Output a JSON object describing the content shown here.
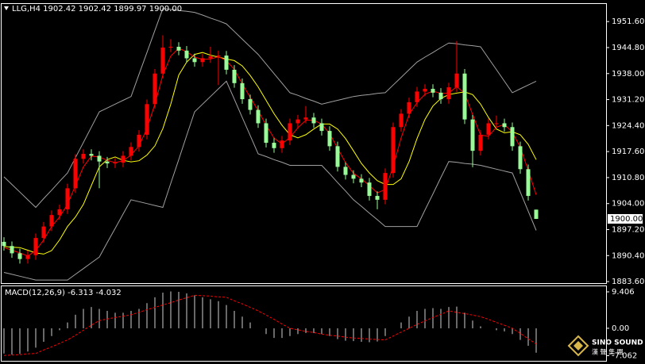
{
  "chart_data": [
    {
      "type": "candlestick",
      "title": "LLG,H4  1902.42 1902.42 1899.97 1900.00",
      "up_color": "#ff0000",
      "down_color": "#98fb98",
      "open": [
        1894,
        1892.9,
        1891,
        1889.5,
        1890.5,
        1895,
        1898,
        1901,
        1902.5,
        1908,
        1915.7,
        1917,
        1916.5,
        1915,
        1914.5,
        1914.7,
        1916.5,
        1918.8,
        1922,
        1930,
        1938,
        1944.8,
        1945,
        1944,
        1942,
        1941,
        1942,
        1942.5,
        1942.7,
        1939,
        1935.5,
        1931.3,
        1928.5,
        1925,
        1919.9,
        1918.5,
        1920.5,
        1925,
        1926,
        1926.5,
        1925,
        1923,
        1919,
        1913.6,
        1911.5,
        1910.5,
        1909.5,
        1906,
        1905,
        1912,
        1924,
        1927.5,
        1930.5,
        1933.3,
        1934,
        1933,
        1931.3,
        1934.4,
        1938,
        1926,
        1917.8,
        1922,
        1925,
        1925,
        1924,
        1919,
        1913,
        1902.42
      ],
      "high": [
        1895.2,
        1894.1,
        1892.2,
        1891.7,
        1896.2,
        1899.2,
        1902.2,
        1903.7,
        1909.2,
        1916.9,
        1918.2,
        1918.2,
        1917.7,
        1916.2,
        1915.9,
        1917.7,
        1920,
        1923.2,
        1931.2,
        1939.2,
        1948,
        1947,
        1946.2,
        1945.2,
        1943.2,
        1943.2,
        1945,
        1944,
        1943.9,
        1940.2,
        1936.7,
        1932.5,
        1929.7,
        1926.2,
        1921.1,
        1921.7,
        1926.2,
        1927.2,
        1929.5,
        1927.7,
        1926.2,
        1924.2,
        1920.2,
        1914.8,
        1912.7,
        1911.7,
        1910.7,
        1907.2,
        1913.2,
        1925.2,
        1928.7,
        1931.7,
        1934.5,
        1935.2,
        1935.2,
        1934.2,
        1935.6,
        1946.5,
        1939.2,
        1927.2,
        1923.2,
        1926.2,
        1927,
        1926.2,
        1925.2,
        1920.2,
        1914.2,
        1902.42
      ],
      "low": [
        1891.7,
        1889.8,
        1888.3,
        1888.3,
        1889.3,
        1893.8,
        1896.8,
        1899.8,
        1901.3,
        1906.8,
        1914.5,
        1915.3,
        1908,
        1913.3,
        1913.3,
        1913.5,
        1915.3,
        1917.6,
        1920.8,
        1928.8,
        1936.8,
        1943.6,
        1942.8,
        1940.8,
        1939.8,
        1939.8,
        1940.8,
        1935,
        1937.8,
        1934.3,
        1930.1,
        1927.3,
        1923.8,
        1918.7,
        1917.3,
        1917.3,
        1919.3,
        1923.8,
        1925,
        1923.8,
        1921.8,
        1917.8,
        1912.4,
        1910.3,
        1909.3,
        1908.3,
        1904.8,
        1902.5,
        1903.8,
        1910.8,
        1922.8,
        1926.3,
        1929.3,
        1932.1,
        1931.8,
        1930.1,
        1930.1,
        1933.2,
        1924.8,
        1913.5,
        1916.6,
        1920.8,
        1923.8,
        1922.8,
        1917.8,
        1911.8,
        1904.8,
        1899.97
      ],
      "close": [
        1892.9,
        1891,
        1889.5,
        1890.5,
        1895,
        1898,
        1901,
        1902.5,
        1908,
        1915.7,
        1917,
        1916.5,
        1915,
        1914.5,
        1914.7,
        1916.5,
        1918.8,
        1922,
        1930,
        1938,
        1944.8,
        1945,
        1944,
        1942,
        1941,
        1942,
        1942.5,
        1942.7,
        1939,
        1935.5,
        1931.3,
        1928.5,
        1925,
        1919.9,
        1918.5,
        1920.5,
        1925,
        1926,
        1926.5,
        1925,
        1923,
        1919,
        1913.6,
        1911.5,
        1910.5,
        1909.5,
        1906,
        1905,
        1912,
        1924,
        1927.5,
        1930.5,
        1933.3,
        1934,
        1933,
        1931.3,
        1934.4,
        1938,
        1926,
        1917.8,
        1922,
        1925,
        1925,
        1924,
        1919,
        1913,
        1906,
        1900
      ],
      "overlays": [
        {
          "color": "#a0a0a0",
          "values": [
            1911,
            1909,
            1907,
            1905,
            1903,
            1905.3,
            1907.5,
            1909.8,
            1912,
            1916,
            1920,
            1924,
            1928,
            1929,
            1930,
            1931,
            1932,
            1937.8,
            1943.5,
            1949.3,
            1955,
            1954.8,
            1954.5,
            1954.3,
            1954,
            1953.3,
            1952.5,
            1951.8,
            1951,
            1949,
            1947,
            1945,
            1943,
            1940.5,
            1938,
            1935.5,
            1933,
            1932.3,
            1931.5,
            1930.8,
            1930,
            1930.5,
            1931,
            1931.5,
            1932,
            1932.3,
            1932.5,
            1932.8,
            1933,
            1935,
            1937,
            1939,
            1941,
            1942.3,
            1943.5,
            1944.8,
            1946,
            1945.8,
            1945.5,
            1945.3,
            1945,
            1942,
            1939,
            1936,
            1933,
            1934,
            1935,
            1936
          ]
        },
        {
          "color": "#a0a0a0",
          "values": [
            1886,
            1885.5,
            1885,
            1884.5,
            1884,
            1884,
            1884,
            1884,
            1884,
            1885.5,
            1887,
            1888.5,
            1890,
            1893.8,
            1897.5,
            1901.3,
            1905,
            1904.5,
            1904,
            1903.5,
            1903,
            1909.3,
            1915.5,
            1921.8,
            1928,
            1930,
            1932,
            1934,
            1936,
            1931.3,
            1926.5,
            1921.8,
            1917,
            1916.3,
            1915.5,
            1914.8,
            1914,
            1914,
            1914,
            1914,
            1914,
            1911.8,
            1909.5,
            1907.3,
            1905,
            1903.3,
            1901.5,
            1899.8,
            1898,
            1898,
            1898,
            1898,
            1898,
            1902.3,
            1906.5,
            1910.8,
            1915,
            1914.8,
            1914.5,
            1914.3,
            1914,
            1913.5,
            1913,
            1912.5,
            1912,
            1907,
            1902,
            1897
          ]
        },
        {
          "color": "#ffff00",
          "values": [
            1892.8,
            1892.6,
            1892.5,
            1891.8,
            1891.1,
            1890.8,
            1891.7,
            1894.5,
            1898,
            1900.5,
            1903.8,
            1908.7,
            1913.6,
            1915.5,
            1916.2,
            1915.3,
            1914.9,
            1915.2,
            1916.7,
            1919.1,
            1923.6,
            1930,
            1937.6,
            1941,
            1943,
            1943.5,
            1942.8,
            1942.3,
            1941.8,
            1941.4,
            1940,
            1937.5,
            1934.5,
            1931,
            1927.5,
            1924.5,
            1922,
            1921.2,
            1922,
            1923.5,
            1924.8,
            1924.8,
            1923.5,
            1921,
            1917.8,
            1914.5,
            1912,
            1910,
            1909,
            1909,
            1910.5,
            1915,
            1921,
            1926,
            1929.5,
            1931.5,
            1932.5,
            1932.9,
            1933.2,
            1932.5,
            1930,
            1926.5,
            1923.5,
            1922.5,
            1922.8,
            1922,
            1919.5,
            1915.5
          ]
        },
        {
          "color": "#ff0000",
          "values": [
            1892.5,
            1891.8,
            1891.1,
            1890.3,
            1891.7,
            1894.5,
            1898,
            1900.5,
            1903.8,
            1908.7,
            1913.6,
            1916.4,
            1916.2,
            1915.3,
            1914.7,
            1915.2,
            1916.7,
            1919.1,
            1923.6,
            1930,
            1937.6,
            1942.6,
            1944.6,
            1943.7,
            1942.3,
            1941.7,
            1941.8,
            1942.4,
            1941.4,
            1939.1,
            1935.3,
            1931.8,
            1928.3,
            1924.5,
            1921.1,
            1919.6,
            1921.3,
            1923.8,
            1925.8,
            1925.8,
            1924.8,
            1922.3,
            1918.5,
            1914.7,
            1911.9,
            1910.5,
            1908.7,
            1906.8,
            1907.7,
            1913.7,
            1921.2,
            1927.3,
            1930.4,
            1932.6,
            1933.4,
            1932.8,
            1932.9,
            1934.6,
            1932.8,
            1927.3,
            1921.9,
            1921.6,
            1924,
            1924.7,
            1922.7,
            1918.7,
            1912.7,
            1906.3
          ]
        }
      ],
      "last_price": {
        "value": 1900,
        "label": "1900.00"
      },
      "ylim": [
        1883.2,
        1956.2
      ],
      "yticks": [
        {
          "value": 1951.6,
          "label": "1951.60"
        },
        {
          "value": 1944.8,
          "label": "1944.80"
        },
        {
          "value": 1938,
          "label": "1938.00"
        },
        {
          "value": 1931.2,
          "label": "1931.20"
        },
        {
          "value": 1924.4,
          "label": "1924.40"
        },
        {
          "value": 1917.6,
          "label": "1917.60"
        },
        {
          "value": 1910.8,
          "label": "1910.80"
        },
        {
          "value": 1904,
          "label": "1904.00"
        },
        {
          "value": 1897.2,
          "label": "1897.20"
        },
        {
          "value": 1890.4,
          "label": "1890.40"
        },
        {
          "value": 1883.6,
          "label": "1883.60"
        }
      ]
    },
    {
      "type": "macd",
      "title": "MACD(12,26,9) -6.313 -4.032",
      "color": "#d0d0d0",
      "values": [
        -6.5,
        -6.8,
        -6.6,
        -6,
        -5,
        -3.5,
        -2,
        -0.5,
        1.5,
        3.5,
        5,
        5.5,
        5,
        4.5,
        4,
        4,
        4.5,
        5,
        6.5,
        8,
        9.2,
        9.5,
        9.4,
        9,
        8.5,
        8,
        7.5,
        7,
        6,
        4.5,
        3,
        1.5,
        0,
        -1.5,
        -2.5,
        -2.5,
        -2,
        -1.5,
        -1.2,
        -1.2,
        -1.5,
        -2,
        -2.8,
        -3.2,
        -3.3,
        -3.5,
        -3.6,
        -3.4,
        -2,
        0,
        1.5,
        3,
        4.5,
        5,
        5.2,
        5,
        5.5,
        5.6,
        4,
        2,
        0.5,
        0,
        -0.5,
        -0.8,
        -1.5,
        -3,
        -4.5,
        -6.313
      ],
      "signal": {
        "color": "#ff0000",
        "values": [
          -7,
          -6.9,
          -6.8,
          -6.6,
          -6.5,
          -5.6,
          -4.8,
          -3.9,
          -3,
          -1.8,
          -0.5,
          0.8,
          2,
          2.4,
          2.8,
          3.1,
          3.5,
          4.1,
          4.8,
          5.4,
          6,
          6.6,
          7.3,
          7.9,
          8.5,
          8.4,
          8.3,
          8.1,
          8,
          7.1,
          6.3,
          5.4,
          4.5,
          3.4,
          2.3,
          1.1,
          0,
          -0.4,
          -0.8,
          -1.1,
          -1.5,
          -1.8,
          -2,
          -2.3,
          -2.5,
          -2.6,
          -2.8,
          -2.9,
          -3,
          -2,
          -1,
          0,
          1,
          1.9,
          2.8,
          3.6,
          4.5,
          4.1,
          3.8,
          3.4,
          3,
          2.3,
          1.5,
          0.8,
          0,
          -1.3,
          -2.7,
          -4.032
        ]
      },
      "ylim": [
        -8.4,
        10.84
      ],
      "yticks": [
        9.406,
        {
          "value": 0,
          "label": "0.00"
        },
        -7.062
      ]
    }
  ],
  "watermark": {
    "title": "SINO SOUND",
    "subtitle": "漢 聲 集 團"
  }
}
